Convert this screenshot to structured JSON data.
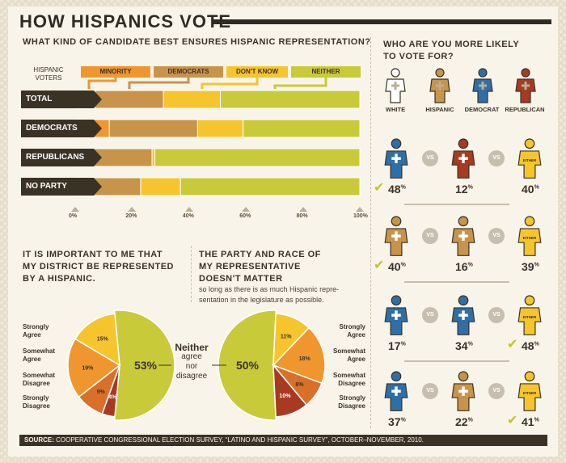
{
  "title": "HOW HISPANICS VOTE",
  "bar_section": {
    "title": "WHAT KIND OF CANDIDATE BEST ENSURES HISPANIC REPRESENTATION?",
    "axis_title": "HISPANIC VOTERS",
    "legend": [
      "MINORITY",
      "DEMOCRATS",
      "DON'T KNOW",
      "NEITHER"
    ],
    "colors": [
      "#f0962e",
      "#c8944a",
      "#f6c52e",
      "#c9ca3a"
    ]
  },
  "pie_left": {
    "title_lines": [
      "IT IS IMPORTANT TO ME THAT",
      "MY DISTRICT BE REPRESENTED",
      "BY A HISPANIC."
    ],
    "labels": [
      [
        "Strongly",
        "Agree"
      ],
      [
        "Somewhat",
        "Agree"
      ],
      [
        "Somewhat",
        "Disagree"
      ],
      [
        "Strongly",
        "Disagree"
      ]
    ]
  },
  "pie_right": {
    "title_lines": [
      "THE PARTY AND RACE OF",
      "MY REPRESENTATIVE",
      "DOESN'T MATTER"
    ],
    "subtitle_lines": [
      "so long as there is as much Hispanic repre-",
      "sentation in the legislature as possible."
    ],
    "labels": [
      [
        "Strongly",
        "Agree"
      ],
      [
        "Somewhat",
        "Agree"
      ],
      [
        "Somewhat",
        "Disagree"
      ],
      [
        "Strongly",
        "Disagree"
      ]
    ]
  },
  "neither": {
    "line1": "Neither",
    "line2": "agree",
    "line3": "nor",
    "line4": "disagree"
  },
  "vote_section": {
    "title_lines": [
      "WHO ARE YOU MORE LIKELY",
      "TO VOTE FOR?"
    ],
    "headers": [
      "WHITE",
      "HISPANIC",
      "DEMOCRAT",
      "REPUBLICAN"
    ],
    "vs_label": "VS",
    "either_label": "EITHER",
    "rows": [
      {
        "values": [
          "48",
          "12",
          "40"
        ],
        "winner": 0
      },
      {
        "values": [
          "40",
          "16",
          "39"
        ],
        "winner": 0
      },
      {
        "values": [
          "17",
          "34",
          "48"
        ],
        "winner": 2
      },
      {
        "values": [
          "37",
          "22",
          "41"
        ],
        "winner": 2
      }
    ],
    "pct_suffix": "%"
  },
  "footer": {
    "label": "SOURCE:",
    "text": " COOPERATIVE CONGRESSIONAL ELECTION SURVEY, “LATINO AND HISPANIC SURVEY”, OCTOBER–NOVEMBER, 2010."
  },
  "chart_data": [
    {
      "type": "bar",
      "orientation": "horizontal-stacked",
      "categories": [
        "TOTAL",
        "DEMOCRATS",
        "REPUBLICANS",
        "NO PARTY"
      ],
      "series": [
        {
          "name": "MINORITY",
          "values": [
            7,
            12,
            1,
            1
          ]
        },
        {
          "name": "DEMOCRATS",
          "values": [
            24,
            31,
            26,
            22
          ]
        },
        {
          "name": "DON'T KNOW",
          "values": [
            20,
            16,
            1,
            14
          ]
        },
        {
          "name": "NEITHER",
          "values": [
            49,
            41,
            72,
            63
          ]
        }
      ],
      "xticks": [
        "0%",
        "20%",
        "40%",
        "60%",
        "80%",
        "100%"
      ],
      "xlim": [
        0,
        100
      ]
    },
    {
      "type": "pie",
      "categories": [
        "Strongly Agree",
        "Somewhat Agree",
        "Somewhat Disagree",
        "Strongly Disagree",
        "Neither agree nor disagree"
      ],
      "values": [
        15,
        19,
        9,
        4,
        53
      ],
      "labels": [
        "15%",
        "19%",
        "9%",
        "4%",
        "53%"
      ]
    },
    {
      "type": "pie",
      "categories": [
        "Strongly Agree",
        "Somewhat Agree",
        "Somewhat Disagree",
        "Strongly Disagree",
        "Neither agree nor disagree"
      ],
      "values": [
        11,
        18,
        8,
        10,
        50
      ],
      "labels": [
        "11%",
        "18%",
        "8%",
        "10%",
        "50%"
      ]
    }
  ]
}
